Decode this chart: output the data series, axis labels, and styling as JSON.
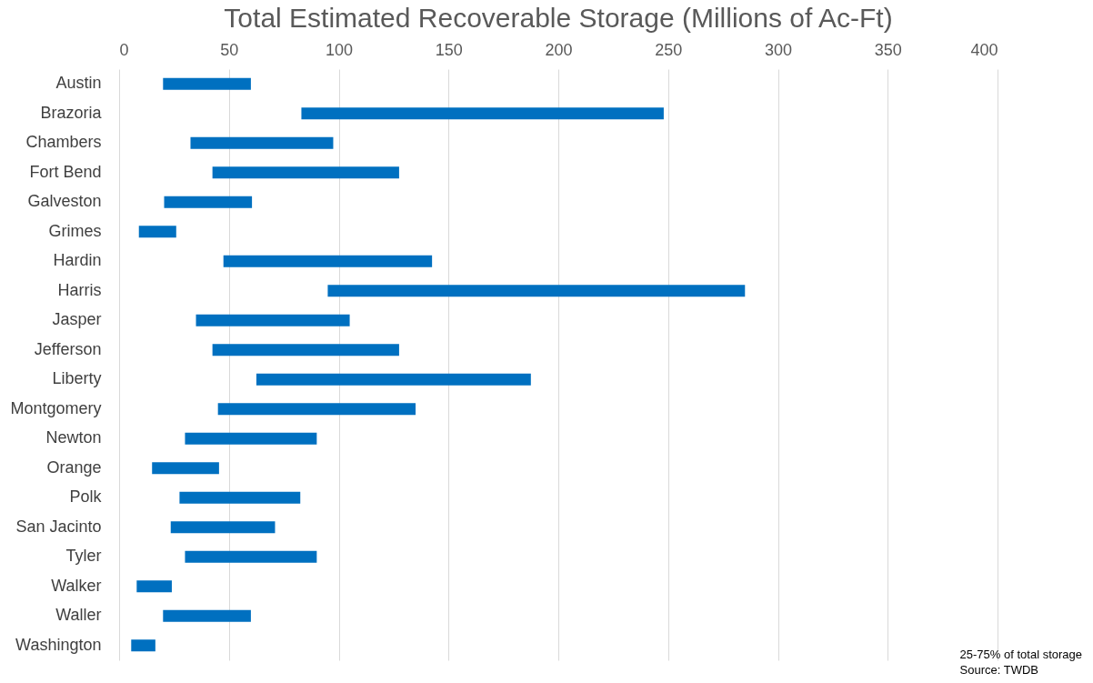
{
  "chart_data": {
    "type": "bar",
    "orientation": "horizontal",
    "title": "Total Estimated Recoverable Storage (Millions of Ac-Ft)",
    "categories": [
      "Austin",
      "Brazoria",
      "Chambers",
      "Fort Bend",
      "Galveston",
      "Grimes",
      "Hardin",
      "Harris",
      "Jasper",
      "Jefferson",
      "Liberty",
      "Montgomery",
      "Newton",
      "Orange",
      "Polk",
      "San Jacinto",
      "Tyler",
      "Walker",
      "Waller",
      "Washington"
    ],
    "base": [
      20,
      83,
      32.5,
      42.5,
      20.5,
      9,
      47.5,
      95,
      35,
      42.5,
      62.5,
      45,
      30,
      15,
      27.5,
      23.5,
      30,
      8,
      20,
      5.5
    ],
    "values": [
      40,
      165,
      65,
      85,
      40,
      17,
      95,
      190,
      70,
      85,
      125,
      90,
      60,
      30.5,
      55,
      47.5,
      60,
      16,
      40,
      11
    ],
    "color": "#0070c0",
    "xlim": [
      0,
      400
    ],
    "xticks": [
      0,
      50,
      100,
      150,
      200,
      250,
      300,
      350,
      400
    ],
    "grid": "x",
    "annotations": [
      "25-75% of total storage",
      "Source: TWDB"
    ]
  }
}
